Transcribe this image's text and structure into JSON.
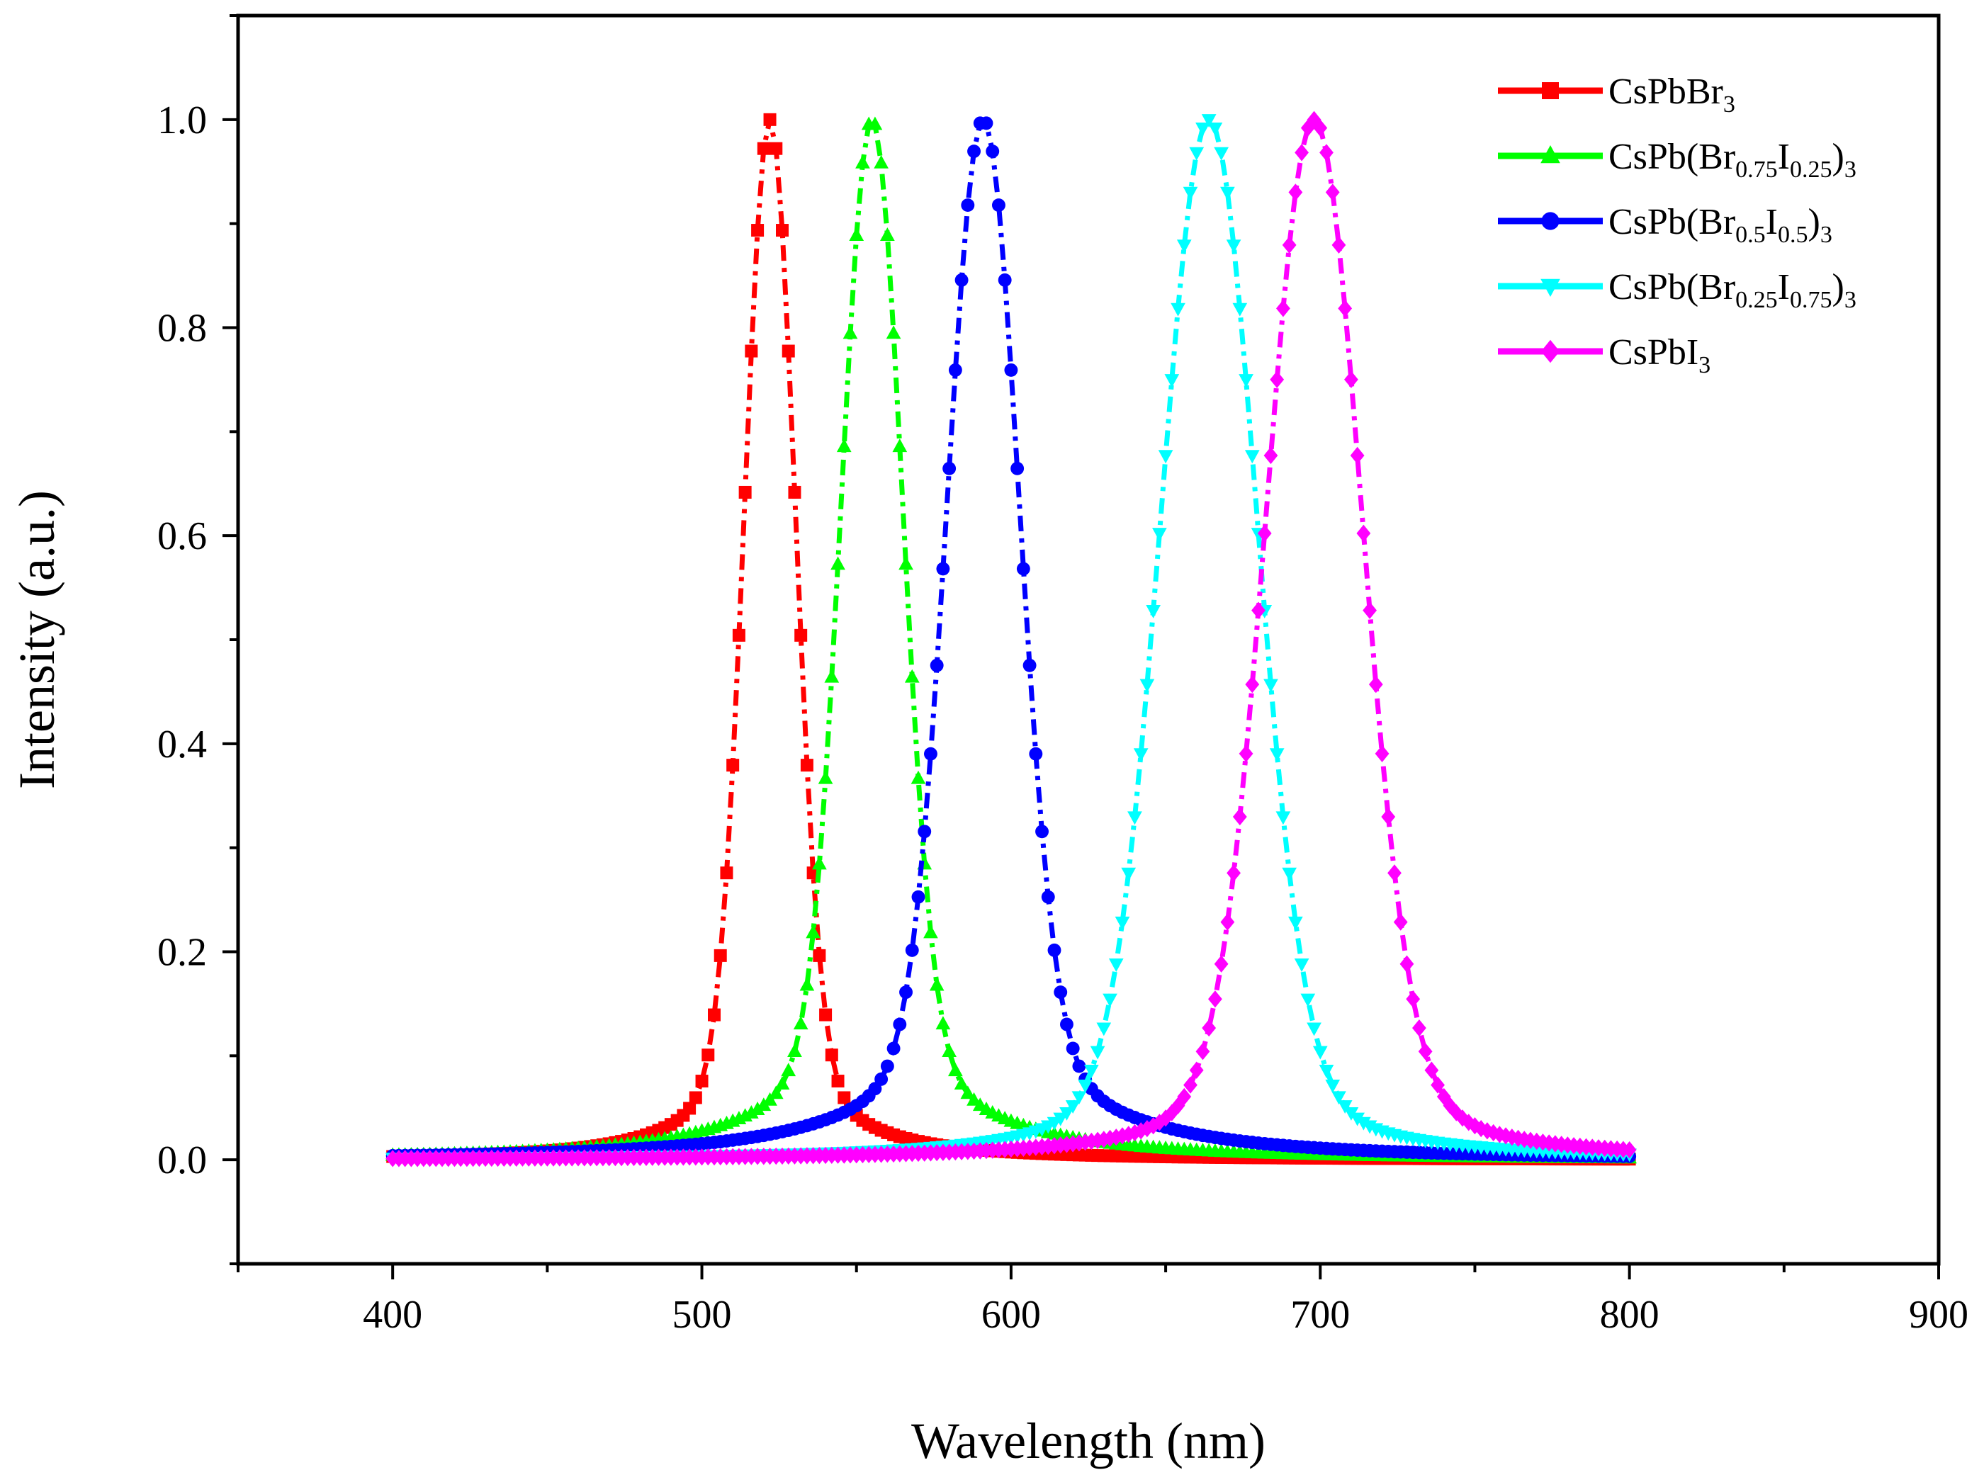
{
  "chart_data": {
    "type": "line",
    "title": "",
    "xlabel": "Wavelength (nm)",
    "ylabel": "Intensity (a.u.)",
    "xlim": [
      350,
      900
    ],
    "ylim": [
      -0.1,
      1.1
    ],
    "xticks": [
      400,
      500,
      600,
      700,
      800,
      900
    ],
    "yticks": [
      0.0,
      0.2,
      0.4,
      0.6,
      0.8,
      1.0
    ],
    "xtick_labels": [
      "400",
      "500",
      "600",
      "700",
      "800",
      "900"
    ],
    "ytick_labels": [
      "0.0",
      "0.2",
      "0.4",
      "0.6",
      "0.8",
      "1.0"
    ],
    "x_range": [
      400,
      800
    ],
    "x_step": 2,
    "legend_position": "top-right",
    "grid": false,
    "series": [
      {
        "name": "CsPbBr3",
        "label_parts": [
          [
            "CsPbBr",
            "n"
          ],
          [
            "3",
            "sub"
          ]
        ],
        "color": "#ff0000",
        "marker": "square",
        "peak_nm": 522,
        "fwhm_nm": 19,
        "tail_fwhm_nm": 40,
        "tail_weight": 0.12,
        "peak_intensity": 1.0
      },
      {
        "name": "CsPb(Br0.75I0.25)3",
        "label_parts": [
          [
            "CsPb(Br",
            "n"
          ],
          [
            "0.75",
            "sub"
          ],
          [
            "I",
            "n"
          ],
          [
            "0.25",
            "sub"
          ],
          [
            ")",
            "n"
          ],
          [
            "3",
            "sub"
          ]
        ],
        "color": "#00ff00",
        "marker": "triangle-up",
        "peak_nm": 555,
        "fwhm_nm": 23,
        "tail_fwhm_nm": 60,
        "tail_weight": 0.12,
        "peak_intensity": 1.0
      },
      {
        "name": "CsPb(Br0.5I0.5)3",
        "label_parts": [
          [
            "CsPb(Br",
            "n"
          ],
          [
            "0.5",
            "sub"
          ],
          [
            "I",
            "n"
          ],
          [
            "0.5",
            "sub"
          ],
          [
            ")",
            "n"
          ],
          [
            "3",
            "sub"
          ]
        ],
        "color": "#0000ff",
        "marker": "circle",
        "peak_nm": 591,
        "fwhm_nm": 27,
        "tail_fwhm_nm": 70,
        "tail_weight": 0.12,
        "peak_intensity": 1.0
      },
      {
        "name": "CsPb(Br0.25I0.75)3",
        "label_parts": [
          [
            "CsPb(Br",
            "n"
          ],
          [
            "0.25",
            "sub"
          ],
          [
            "I",
            "n"
          ],
          [
            "0.75",
            "sub"
          ],
          [
            ")",
            "n"
          ],
          [
            "3",
            "sub"
          ]
        ],
        "color": "#00ffff",
        "marker": "triangle-down",
        "peak_nm": 664,
        "fwhm_nm": 36,
        "tail_fwhm_nm": 60,
        "tail_weight": 0.12,
        "peak_intensity": 1.0
      },
      {
        "name": "CsPbI3",
        "label_parts": [
          [
            "CsPbI",
            "n"
          ],
          [
            "3",
            "sub"
          ]
        ],
        "color": "#ff00ff",
        "marker": "diamond",
        "peak_nm": 698,
        "fwhm_nm": 36,
        "tail_fwhm_nm": 60,
        "tail_weight": 0.12,
        "peak_intensity": 1.0
      }
    ]
  }
}
